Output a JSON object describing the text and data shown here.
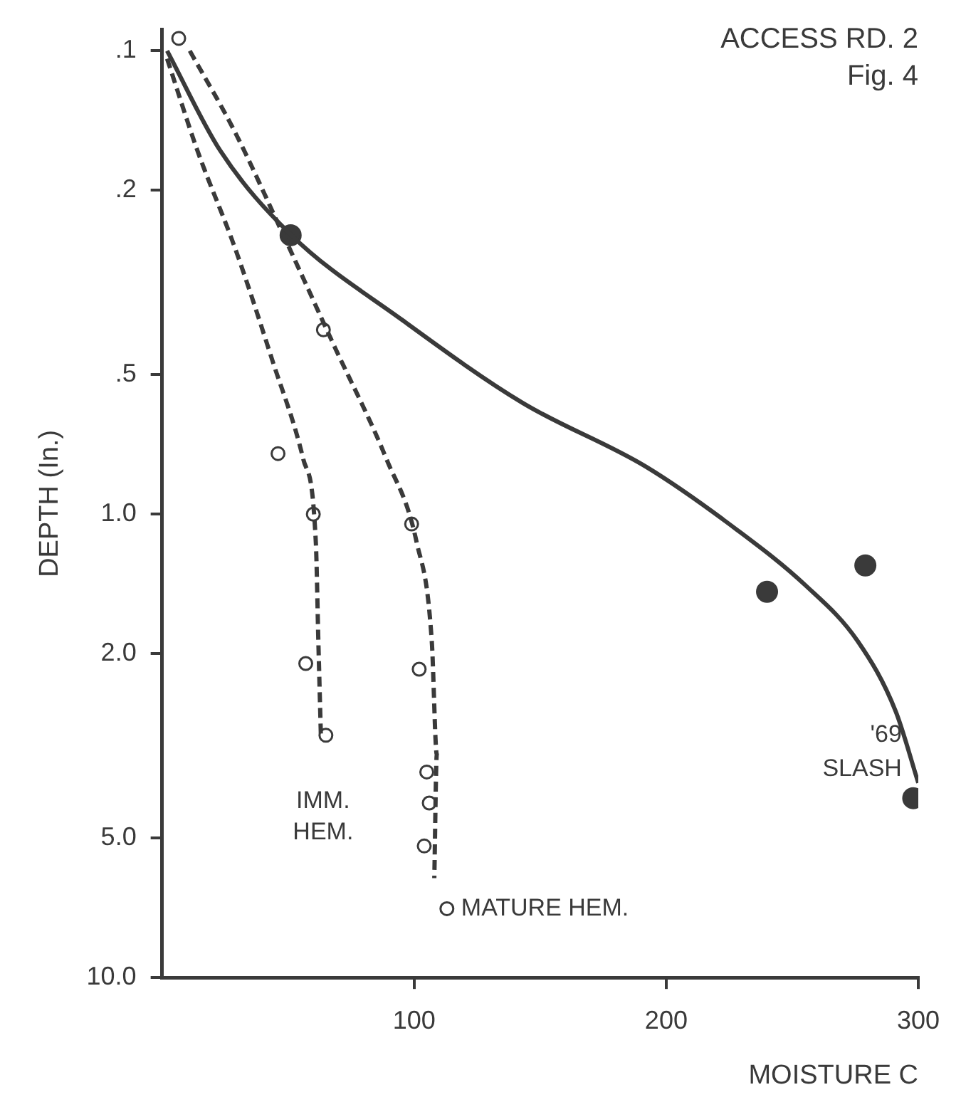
{
  "chart_data": {
    "type": "scatter",
    "title": "ACCESS RD. 2",
    "subtitle": "Fig. 4",
    "xlabel": "MOISTURE C",
    "ylabel": "DEPTH (In.)",
    "xlim": [
      0,
      300
    ],
    "xticks": [
      100,
      200,
      300
    ],
    "ylim": [
      10,
      0.09
    ],
    "yticks": [
      {
        "value": 0.1,
        "label": ".1"
      },
      {
        "value": 0.2,
        "label": ".2"
      },
      {
        "value": 0.5,
        "label": ".5"
      },
      {
        "value": 1,
        "label": "1.0"
      },
      {
        "value": 2,
        "label": "2.0"
      },
      {
        "value": 5,
        "label": "5.0"
      },
      {
        "value": 10,
        "label": "10.0"
      }
    ],
    "log": "y",
    "grid": false,
    "legend": false,
    "series": [
      {
        "type": "line",
        "color": "#3a3a3a",
        "line_style": "solid",
        "marker": "none",
        "x": [
          2,
          23,
          51,
          95,
          143,
          192,
          228,
          255,
          276,
          291,
          300
        ],
        "values": [
          0.1,
          0.164,
          0.249,
          0.38,
          0.575,
          0.79,
          1.08,
          1.42,
          1.88,
          2.66,
          3.8
        ]
      },
      {
        "type": "line",
        "color": "#3a3a3a",
        "line_style": "dashed",
        "marker": "none",
        "x": [
          2,
          14,
          29,
          44,
          56,
          61,
          62,
          63
        ],
        "values": [
          0.104,
          0.164,
          0.267,
          0.47,
          0.76,
          1.15,
          1.88,
          3.0
        ]
      },
      {
        "type": "line",
        "color": "#3a3a3a",
        "line_style": "dashed",
        "marker": "none",
        "x": [
          11,
          29,
          48,
          68,
          89,
          101,
          107,
          109,
          108
        ],
        "values": [
          0.1,
          0.15,
          0.249,
          0.43,
          0.76,
          1.15,
          1.88,
          3.3,
          6.1
        ]
      },
      {
        "type": "scatter",
        "name": "IMM. HEM.",
        "color": "#3a3a3a",
        "marker": "circle",
        "x": [
          46,
          60,
          57,
          65
        ],
        "values": [
          0.74,
          1.0,
          2.1,
          3.0
        ]
      },
      {
        "type": "scatter",
        "name": "MATURE HEM.",
        "color": "#3a3a3a",
        "marker": "circle",
        "x": [
          6.6,
          64,
          99,
          102,
          105,
          106,
          104,
          113
        ],
        "values": [
          0.094,
          0.4,
          1.05,
          2.16,
          3.6,
          4.2,
          5.2,
          7.1
        ]
      },
      {
        "type": "scatter",
        "name": "'69 SLASH",
        "color": "#3a3a3a",
        "marker": "circle",
        "x": [
          51,
          240,
          279,
          298
        ],
        "values": [
          0.25,
          1.47,
          1.29,
          4.1
        ]
      }
    ]
  }
}
